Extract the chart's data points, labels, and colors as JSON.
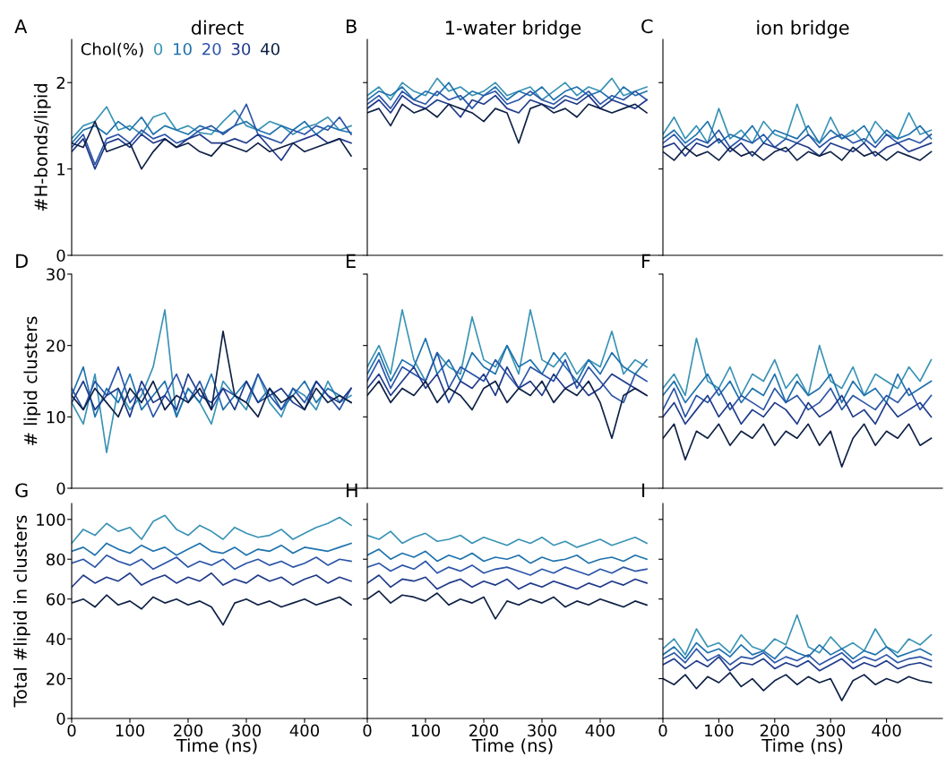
{
  "chart_data": [
    {
      "type": "line",
      "title": "direct",
      "ylabel": "#H-bonds/lipid",
      "annotations": [
        "A"
      ],
      "legend": "top left",
      "legend_title": "Chol(%)",
      "tick_labels": "y",
      "xlim": [
        0,
        500
      ],
      "xticks": [
        0,
        100,
        200,
        300,
        400
      ],
      "ylim": [
        0,
        2.5
      ],
      "yticks": [
        0,
        1,
        2
      ],
      "x": [
        0,
        20,
        40,
        60,
        80,
        100,
        120,
        140,
        160,
        180,
        200,
        220,
        240,
        260,
        280,
        300,
        320,
        340,
        360,
        380,
        400,
        420,
        440,
        460,
        480
      ],
      "series": [
        {
          "name": "0",
          "color": "#3a93b5",
          "values": [
            1.35,
            1.5,
            1.55,
            1.72,
            1.45,
            1.5,
            1.4,
            1.6,
            1.65,
            1.45,
            1.5,
            1.42,
            1.4,
            1.55,
            1.68,
            1.5,
            1.45,
            1.55,
            1.5,
            1.4,
            1.48,
            1.52,
            1.6,
            1.45,
            1.5
          ]
        },
        {
          "name": "10",
          "color": "#1f72ad",
          "values": [
            1.3,
            1.45,
            1.5,
            1.4,
            1.55,
            1.45,
            1.6,
            1.4,
            1.5,
            1.45,
            1.4,
            1.5,
            1.45,
            1.42,
            1.5,
            1.55,
            1.45,
            1.4,
            1.5,
            1.45,
            1.55,
            1.4,
            1.5,
            1.45,
            1.42
          ]
        },
        {
          "name": "20",
          "color": "#2b55a8",
          "values": [
            1.25,
            1.4,
            1.05,
            1.35,
            1.4,
            1.3,
            1.45,
            1.35,
            1.4,
            1.3,
            1.35,
            1.45,
            1.5,
            1.4,
            1.5,
            1.75,
            1.4,
            1.35,
            1.3,
            1.45,
            1.4,
            1.5,
            1.45,
            1.6,
            1.4
          ]
        },
        {
          "name": "30",
          "color": "#1f3a8a",
          "values": [
            1.2,
            1.35,
            1.0,
            1.3,
            1.35,
            1.25,
            1.4,
            1.3,
            1.35,
            1.25,
            1.35,
            1.4,
            1.3,
            1.3,
            1.35,
            1.3,
            1.4,
            1.25,
            1.1,
            1.3,
            1.35,
            1.4,
            1.3,
            1.35,
            1.3
          ]
        },
        {
          "name": "40",
          "color": "#0e2145",
          "values": [
            1.3,
            1.25,
            1.55,
            1.2,
            1.25,
            1.3,
            1.0,
            1.2,
            1.35,
            1.25,
            1.3,
            1.2,
            1.15,
            1.3,
            1.25,
            1.2,
            1.3,
            1.2,
            1.25,
            1.3,
            1.2,
            1.25,
            1.3,
            1.35,
            1.15
          ]
        }
      ]
    },
    {
      "type": "line",
      "title": "1-water bridge",
      "annotations": [
        "B"
      ],
      "tick_labels": false,
      "xlim": [
        0,
        500
      ],
      "xticks": [
        0,
        100,
        200,
        300,
        400
      ],
      "ylim": [
        0,
        2.5
      ],
      "yticks": [
        0,
        1,
        2
      ],
      "x": [
        0,
        20,
        40,
        60,
        80,
        100,
        120,
        140,
        160,
        180,
        200,
        220,
        240,
        260,
        280,
        300,
        320,
        340,
        360,
        380,
        400,
        420,
        440,
        460,
        480
      ],
      "series": [
        {
          "color": "#3a93b5",
          "values": [
            1.85,
            1.95,
            1.8,
            2.0,
            1.9,
            1.85,
            2.05,
            1.9,
            1.95,
            1.85,
            1.9,
            2.0,
            1.85,
            1.9,
            1.95,
            1.8,
            1.9,
            2.0,
            1.85,
            1.95,
            1.9,
            2.05,
            1.85,
            1.9,
            1.95
          ]
        },
        {
          "color": "#1f72ad",
          "values": [
            1.8,
            1.9,
            1.85,
            1.95,
            1.8,
            1.9,
            1.85,
            2.0,
            1.8,
            1.9,
            1.85,
            1.95,
            1.8,
            1.9,
            1.85,
            1.95,
            1.8,
            1.9,
            1.95,
            1.85,
            1.9,
            1.8,
            1.95,
            1.85,
            1.9
          ]
        },
        {
          "color": "#2b55a8",
          "values": [
            1.75,
            1.85,
            1.7,
            1.9,
            1.8,
            1.75,
            1.9,
            1.8,
            1.85,
            1.7,
            1.85,
            1.9,
            1.75,
            1.8,
            1.9,
            1.8,
            1.75,
            1.85,
            1.8,
            1.9,
            1.75,
            1.85,
            1.8,
            1.9,
            1.8
          ]
        },
        {
          "color": "#1f3a8a",
          "values": [
            1.7,
            1.8,
            1.65,
            1.85,
            1.75,
            1.7,
            1.8,
            1.75,
            1.6,
            1.8,
            1.75,
            1.85,
            1.7,
            1.65,
            1.8,
            1.75,
            1.7,
            1.8,
            1.75,
            1.85,
            1.7,
            1.8,
            1.75,
            1.7,
            1.8
          ]
        },
        {
          "color": "#0e2145",
          "values": [
            1.65,
            1.7,
            1.5,
            1.75,
            1.65,
            1.7,
            1.6,
            1.75,
            1.7,
            1.65,
            1.55,
            1.7,
            1.65,
            1.3,
            1.7,
            1.75,
            1.65,
            1.7,
            1.6,
            1.75,
            1.7,
            1.65,
            1.7,
            1.75,
            1.65
          ]
        }
      ]
    },
    {
      "type": "line",
      "title": "ion bridge",
      "annotations": [
        "C"
      ],
      "tick_labels": false,
      "xlim": [
        0,
        500
      ],
      "xticks": [
        0,
        100,
        200,
        300,
        400
      ],
      "ylim": [
        0,
        2.5
      ],
      "yticks": [
        0,
        1,
        2
      ],
      "x": [
        0,
        20,
        40,
        60,
        80,
        100,
        120,
        140,
        160,
        180,
        200,
        220,
        240,
        260,
        280,
        300,
        320,
        340,
        360,
        380,
        400,
        420,
        440,
        460,
        480
      ],
      "series": [
        {
          "color": "#3a93b5",
          "values": [
            1.4,
            1.6,
            1.35,
            1.5,
            1.3,
            1.7,
            1.35,
            1.45,
            1.3,
            1.55,
            1.4,
            1.35,
            1.75,
            1.4,
            1.3,
            1.6,
            1.35,
            1.45,
            1.3,
            1.55,
            1.4,
            1.35,
            1.65,
            1.4,
            1.45
          ]
        },
        {
          "color": "#1f72ad",
          "values": [
            1.35,
            1.45,
            1.3,
            1.4,
            1.55,
            1.3,
            1.4,
            1.35,
            1.5,
            1.3,
            1.45,
            1.4,
            1.35,
            1.5,
            1.3,
            1.45,
            1.35,
            1.4,
            1.5,
            1.3,
            1.45,
            1.35,
            1.4,
            1.5,
            1.35
          ]
        },
        {
          "color": "#2b55a8",
          "values": [
            1.3,
            1.4,
            1.25,
            1.35,
            1.3,
            1.45,
            1.25,
            1.35,
            1.3,
            1.4,
            1.25,
            1.35,
            1.3,
            1.4,
            1.25,
            1.35,
            1.4,
            1.3,
            1.35,
            1.25,
            1.4,
            1.3,
            1.35,
            1.3,
            1.4
          ]
        },
        {
          "color": "#1f3a8a",
          "values": [
            1.25,
            1.3,
            1.15,
            1.3,
            1.25,
            1.35,
            1.2,
            1.3,
            1.15,
            1.3,
            1.25,
            1.2,
            1.3,
            1.25,
            1.15,
            1.3,
            1.25,
            1.2,
            1.3,
            1.15,
            1.25,
            1.3,
            1.2,
            1.25,
            1.3
          ]
        },
        {
          "color": "#0e2145",
          "values": [
            1.2,
            1.1,
            1.25,
            1.15,
            1.2,
            1.1,
            1.25,
            1.15,
            1.2,
            1.1,
            1.2,
            1.25,
            1.1,
            1.2,
            1.15,
            1.2,
            1.1,
            1.25,
            1.15,
            1.2,
            1.1,
            1.2,
            1.15,
            1.1,
            1.2
          ]
        }
      ]
    },
    {
      "type": "line",
      "ylabel": "# lipid clusters",
      "annotations": [
        "D"
      ],
      "tick_labels": "y",
      "xlim": [
        0,
        500
      ],
      "xticks": [
        0,
        100,
        200,
        300,
        400
      ],
      "ylim": [
        0,
        30
      ],
      "yticks": [
        0,
        10,
        20,
        30
      ],
      "x": [
        0,
        20,
        40,
        60,
        80,
        100,
        120,
        140,
        160,
        180,
        200,
        220,
        240,
        260,
        280,
        300,
        320,
        340,
        360,
        380,
        400,
        420,
        440,
        460,
        480
      ],
      "series": [
        {
          "color": "#3a93b5",
          "values": [
            12,
            9,
            16,
            5,
            14,
            11,
            13,
            17,
            25,
            10,
            14,
            12,
            9,
            15,
            13,
            11,
            16,
            12,
            10,
            14,
            13,
            11,
            15,
            12,
            13
          ]
        },
        {
          "color": "#1f72ad",
          "values": [
            13,
            17,
            10,
            14,
            12,
            16,
            11,
            13,
            15,
            10,
            14,
            12,
            16,
            11,
            13,
            15,
            12,
            14,
            11,
            13,
            15,
            12,
            14,
            13,
            12
          ]
        },
        {
          "color": "#2b55a8",
          "values": [
            14,
            11,
            15,
            13,
            17,
            12,
            14,
            10,
            13,
            16,
            12,
            15,
            11,
            14,
            13,
            12,
            16,
            13,
            11,
            14,
            12,
            15,
            13,
            11,
            14
          ]
        },
        {
          "color": "#1f3a8a",
          "values": [
            12,
            15,
            11,
            13,
            14,
            10,
            15,
            12,
            13,
            11,
            16,
            13,
            12,
            14,
            11,
            15,
            12,
            13,
            14,
            12,
            11,
            15,
            13,
            12,
            14
          ]
        },
        {
          "color": "#0e2145",
          "values": [
            13,
            11,
            14,
            12,
            10,
            14,
            12,
            15,
            11,
            13,
            12,
            14,
            11,
            22,
            13,
            12,
            10,
            14,
            12,
            13,
            11,
            14,
            12,
            13,
            12
          ]
        }
      ]
    },
    {
      "type": "line",
      "annotations": [
        "E"
      ],
      "tick_labels": false,
      "xlim": [
        0,
        500
      ],
      "xticks": [
        0,
        100,
        200,
        300,
        400
      ],
      "ylim": [
        0,
        30
      ],
      "yticks": [
        0,
        10,
        20,
        30
      ],
      "x": [
        0,
        20,
        40,
        60,
        80,
        100,
        120,
        140,
        160,
        180,
        200,
        220,
        240,
        260,
        280,
        300,
        320,
        340,
        360,
        380,
        400,
        420,
        440,
        460,
        480
      ],
      "series": [
        {
          "color": "#3a93b5",
          "values": [
            17,
            20,
            16,
            25,
            18,
            15,
            19,
            17,
            16,
            24,
            18,
            17,
            20,
            16,
            25,
            18,
            17,
            19,
            16,
            18,
            17,
            22,
            16,
            18,
            17
          ]
        },
        {
          "color": "#1f72ad",
          "values": [
            16,
            19,
            15,
            18,
            17,
            21,
            16,
            18,
            15,
            19,
            17,
            16,
            20,
            17,
            18,
            16,
            19,
            17,
            15,
            18,
            16,
            19,
            17,
            16,
            18
          ]
        },
        {
          "color": "#2b55a8",
          "values": [
            15,
            18,
            14,
            17,
            16,
            15,
            19,
            14,
            17,
            16,
            15,
            18,
            16,
            14,
            17,
            16,
            15,
            18,
            14,
            17,
            15,
            13,
            12,
            16,
            15
          ]
        },
        {
          "color": "#1f3a8a",
          "values": [
            14,
            16,
            13,
            15,
            17,
            14,
            16,
            12,
            15,
            14,
            16,
            13,
            17,
            14,
            15,
            13,
            16,
            14,
            15,
            13,
            14,
            16,
            15,
            14,
            13
          ]
        },
        {
          "color": "#0e2145",
          "values": [
            13,
            15,
            12,
            14,
            13,
            15,
            12,
            14,
            13,
            11,
            14,
            15,
            12,
            14,
            13,
            15,
            12,
            14,
            13,
            15,
            12,
            7,
            13,
            14,
            13
          ]
        }
      ]
    },
    {
      "type": "line",
      "annotations": [
        "F"
      ],
      "tick_labels": false,
      "xlim": [
        0,
        500
      ],
      "xticks": [
        0,
        100,
        200,
        300,
        400
      ],
      "ylim": [
        0,
        30
      ],
      "yticks": [
        0,
        10,
        20,
        30
      ],
      "x": [
        0,
        20,
        40,
        60,
        80,
        100,
        120,
        140,
        160,
        180,
        200,
        220,
        240,
        260,
        280,
        300,
        320,
        340,
        360,
        380,
        400,
        420,
        440,
        460,
        480
      ],
      "series": [
        {
          "color": "#3a93b5",
          "values": [
            14,
            16,
            13,
            21,
            15,
            14,
            17,
            13,
            16,
            15,
            18,
            14,
            16,
            13,
            20,
            15,
            14,
            17,
            13,
            16,
            15,
            14,
            17,
            15,
            18
          ]
        },
        {
          "color": "#1f72ad",
          "values": [
            13,
            15,
            12,
            14,
            16,
            13,
            15,
            12,
            14,
            13,
            16,
            12,
            15,
            13,
            14,
            16,
            12,
            15,
            13,
            14,
            12,
            16,
            13,
            14,
            15
          ]
        },
        {
          "color": "#2b55a8",
          "values": [
            11,
            14,
            10,
            13,
            12,
            14,
            11,
            13,
            12,
            11,
            14,
            12,
            13,
            11,
            12,
            14,
            11,
            13,
            12,
            11,
            13,
            12,
            14,
            11,
            13
          ]
        },
        {
          "color": "#1f3a8a",
          "values": [
            10,
            12,
            9,
            11,
            13,
            10,
            12,
            9,
            11,
            10,
            12,
            11,
            9,
            12,
            10,
            11,
            13,
            10,
            11,
            9,
            12,
            10,
            11,
            12,
            10
          ]
        },
        {
          "color": "#0e2145",
          "values": [
            7,
            9,
            4,
            8,
            7,
            9,
            6,
            8,
            7,
            9,
            6,
            8,
            7,
            9,
            6,
            8,
            3,
            7,
            9,
            6,
            8,
            7,
            9,
            6,
            7
          ]
        }
      ]
    },
    {
      "type": "line",
      "ylabel": "Total #lipid in clusters",
      "xlabel": "Time (ns)",
      "annotations": [
        "G"
      ],
      "xlim": [
        0,
        500
      ],
      "xticks": [
        0,
        100,
        200,
        300,
        400
      ],
      "ylim": [
        0,
        108
      ],
      "yticks": [
        0,
        20,
        40,
        60,
        80,
        100
      ],
      "x": [
        0,
        20,
        40,
        60,
        80,
        100,
        120,
        140,
        160,
        180,
        200,
        220,
        240,
        260,
        280,
        300,
        320,
        340,
        360,
        380,
        400,
        420,
        440,
        460,
        480
      ],
      "series": [
        {
          "color": "#3a93b5",
          "values": [
            88,
            95,
            92,
            98,
            94,
            96,
            90,
            99,
            102,
            95,
            92,
            97,
            94,
            90,
            96,
            93,
            91,
            92,
            95,
            90,
            93,
            96,
            98,
            101,
            97
          ]
        },
        {
          "color": "#1f72ad",
          "values": [
            84,
            86,
            82,
            88,
            85,
            83,
            87,
            84,
            86,
            82,
            85,
            88,
            84,
            83,
            86,
            82,
            85,
            84,
            87,
            83,
            86,
            85,
            84,
            86,
            88
          ]
        },
        {
          "color": "#2b55a8",
          "values": [
            78,
            80,
            76,
            82,
            79,
            77,
            80,
            75,
            78,
            81,
            76,
            79,
            77,
            80,
            75,
            78,
            80,
            77,
            79,
            76,
            78,
            81,
            77,
            80,
            79
          ]
        },
        {
          "color": "#1f3a8a",
          "values": [
            66,
            72,
            68,
            71,
            69,
            73,
            67,
            70,
            72,
            68,
            71,
            69,
            73,
            67,
            70,
            68,
            72,
            69,
            71,
            67,
            70,
            72,
            68,
            71,
            69
          ]
        },
        {
          "color": "#0e2145",
          "values": [
            58,
            60,
            56,
            62,
            57,
            59,
            55,
            61,
            58,
            60,
            57,
            59,
            56,
            47,
            58,
            60,
            57,
            59,
            56,
            58,
            60,
            57,
            59,
            61,
            57
          ]
        }
      ]
    },
    {
      "type": "line",
      "xlabel": "Time (ns)",
      "annotations": [
        "H"
      ],
      "tick_labels": "x",
      "xlim": [
        0,
        500
      ],
      "xticks": [
        0,
        100,
        200,
        300,
        400
      ],
      "ylim": [
        0,
        108
      ],
      "yticks": [
        0,
        20,
        40,
        60,
        80,
        100
      ],
      "x": [
        0,
        20,
        40,
        60,
        80,
        100,
        120,
        140,
        160,
        180,
        200,
        220,
        240,
        260,
        280,
        300,
        320,
        340,
        360,
        380,
        400,
        420,
        440,
        460,
        480
      ],
      "series": [
        {
          "color": "#3a93b5",
          "values": [
            92,
            90,
            94,
            88,
            91,
            93,
            89,
            90,
            92,
            88,
            91,
            89,
            87,
            90,
            88,
            91,
            87,
            89,
            86,
            88,
            90,
            87,
            89,
            91,
            88
          ]
        },
        {
          "color": "#1f72ad",
          "values": [
            82,
            85,
            80,
            83,
            81,
            84,
            79,
            82,
            80,
            83,
            79,
            81,
            80,
            82,
            78,
            81,
            79,
            80,
            82,
            78,
            80,
            81,
            79,
            82,
            80
          ]
        },
        {
          "color": "#2b55a8",
          "values": [
            76,
            78,
            74,
            77,
            75,
            79,
            73,
            76,
            74,
            77,
            73,
            75,
            76,
            74,
            72,
            75,
            73,
            76,
            74,
            72,
            75,
            73,
            76,
            74,
            75
          ]
        },
        {
          "color": "#1f3a8a",
          "values": [
            68,
            72,
            66,
            70,
            69,
            71,
            65,
            68,
            70,
            66,
            69,
            67,
            70,
            65,
            68,
            66,
            69,
            67,
            65,
            68,
            66,
            69,
            67,
            70,
            68
          ]
        },
        {
          "color": "#0e2145",
          "values": [
            60,
            64,
            58,
            62,
            61,
            59,
            63,
            57,
            60,
            58,
            61,
            50,
            59,
            57,
            60,
            58,
            61,
            56,
            59,
            57,
            60,
            58,
            56,
            59,
            57
          ]
        }
      ]
    },
    {
      "type": "line",
      "xlabel": "Time (ns)",
      "annotations": [
        "I"
      ],
      "tick_labels": "x",
      "xlim": [
        0,
        500
      ],
      "xticks": [
        0,
        100,
        200,
        300,
        400
      ],
      "ylim": [
        0,
        108
      ],
      "yticks": [
        0,
        20,
        40,
        60,
        80,
        100
      ],
      "x": [
        0,
        20,
        40,
        60,
        80,
        100,
        120,
        140,
        160,
        180,
        200,
        220,
        240,
        260,
        280,
        300,
        320,
        340,
        360,
        380,
        400,
        420,
        440,
        460,
        480
      ],
      "series": [
        {
          "color": "#3a93b5",
          "values": [
            35,
            40,
            32,
            45,
            36,
            38,
            33,
            42,
            36,
            34,
            40,
            37,
            52,
            36,
            33,
            41,
            35,
            38,
            34,
            45,
            36,
            33,
            40,
            37,
            42
          ]
        },
        {
          "color": "#1f72ad",
          "values": [
            32,
            36,
            30,
            38,
            33,
            35,
            31,
            37,
            32,
            34,
            30,
            36,
            33,
            31,
            37,
            32,
            35,
            30,
            34,
            32,
            36,
            31,
            33,
            35,
            32
          ]
        },
        {
          "color": "#2b55a8",
          "values": [
            30,
            33,
            28,
            35,
            29,
            32,
            27,
            31,
            30,
            33,
            28,
            31,
            29,
            32,
            27,
            30,
            33,
            28,
            31,
            29,
            32,
            28,
            30,
            31,
            29
          ]
        },
        {
          "color": "#1f3a8a",
          "values": [
            27,
            30,
            25,
            29,
            26,
            31,
            24,
            28,
            27,
            30,
            25,
            28,
            26,
            29,
            24,
            27,
            30,
            25,
            28,
            26,
            29,
            25,
            27,
            28,
            26
          ]
        },
        {
          "color": "#0e2145",
          "values": [
            20,
            17,
            22,
            15,
            21,
            18,
            23,
            16,
            20,
            14,
            19,
            22,
            17,
            21,
            18,
            20,
            9,
            19,
            22,
            17,
            20,
            18,
            21,
            19,
            18
          ]
        }
      ]
    }
  ]
}
